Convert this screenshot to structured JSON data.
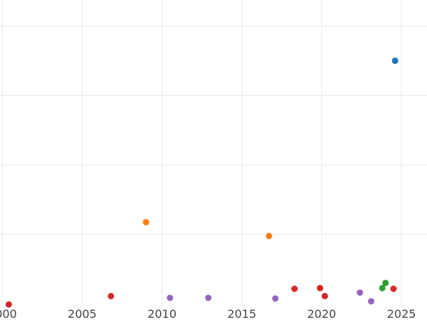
{
  "chart_data": {
    "type": "scatter",
    "title": "",
    "xlabel": "",
    "ylabel": "",
    "xlim": [
      1999.85,
      2026.6
    ],
    "ylim": [
      -0.2,
      8.65
    ],
    "grid": true,
    "x_ticks": [
      2000,
      2005,
      2010,
      2015,
      2020,
      2025
    ],
    "y_gridlines": [
      1.9,
      3.9,
      5.9,
      7.9
    ],
    "show_y_tick_labels": false,
    "series": [
      {
        "color": "#1f77b4",
        "points": [
          [
            2024.6,
            6.9
          ]
        ]
      },
      {
        "color": "#ff7f0e",
        "points": [
          [
            2009.0,
            2.25
          ],
          [
            2016.7,
            1.85
          ]
        ]
      },
      {
        "color": "#2ca02c",
        "points": [
          [
            2023.8,
            0.35
          ],
          [
            2024.0,
            0.5
          ]
        ]
      },
      {
        "color": "#d62728",
        "points": [
          [
            2000.4,
            -0.12
          ],
          [
            2006.8,
            0.12
          ],
          [
            2018.3,
            0.33
          ],
          [
            2019.9,
            0.35
          ],
          [
            2020.2,
            0.12
          ],
          [
            2024.5,
            0.33
          ]
        ]
      },
      {
        "color": "#9467bd",
        "points": [
          [
            2010.5,
            0.07
          ],
          [
            2012.9,
            0.07
          ],
          [
            2017.1,
            0.05
          ],
          [
            2022.4,
            0.22
          ],
          [
            2023.1,
            -0.03
          ]
        ]
      }
    ]
  }
}
